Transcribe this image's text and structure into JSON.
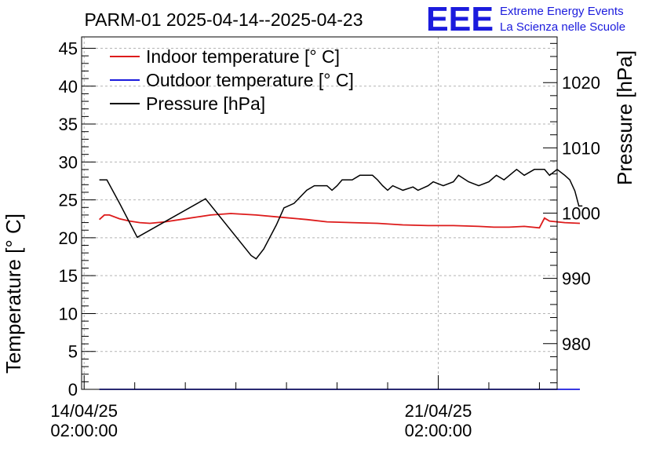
{
  "chart_data": {
    "type": "line",
    "title": "PARM-01 2025-04-14--2025-04-23",
    "ylabel": "Temperature [° C]",
    "y2label": "Pressure [hPa]",
    "ylim": [
      0,
      46.5
    ],
    "y2lim": [
      973,
      1027
    ],
    "xlim_days": [
      -0.05,
      9.35
    ],
    "grid": true,
    "legend_position": "top-left",
    "yticks": [
      0,
      5,
      10,
      15,
      20,
      25,
      30,
      35,
      40,
      45
    ],
    "y2ticks": [
      980,
      990,
      1000,
      1010,
      1020
    ],
    "xticks": [
      {
        "day": 0,
        "label1": "14/04/25",
        "label2": "02:00:00"
      },
      {
        "day": 7,
        "label1": "21/04/25",
        "label2": "02:00:00"
      }
    ],
    "series": [
      {
        "name": "Indoor temperature [° C]",
        "color": "#dd1b1b",
        "axis": "left",
        "points": [
          [
            0.3,
            22.4
          ],
          [
            0.4,
            23.0
          ],
          [
            0.5,
            23.0
          ],
          [
            0.7,
            22.5
          ],
          [
            0.9,
            22.2
          ],
          [
            1.1,
            22.0
          ],
          [
            1.3,
            21.9
          ],
          [
            1.6,
            22.1
          ],
          [
            2.0,
            22.5
          ],
          [
            2.5,
            23.0
          ],
          [
            2.9,
            23.2
          ],
          [
            3.4,
            23.0
          ],
          [
            3.9,
            22.7
          ],
          [
            4.4,
            22.4
          ],
          [
            4.8,
            22.1
          ],
          [
            5.3,
            22.0
          ],
          [
            5.8,
            21.9
          ],
          [
            6.3,
            21.7
          ],
          [
            6.8,
            21.6
          ],
          [
            7.3,
            21.6
          ],
          [
            7.8,
            21.5
          ],
          [
            8.1,
            21.4
          ],
          [
            8.4,
            21.4
          ],
          [
            8.7,
            21.5
          ],
          [
            9.0,
            21.3
          ],
          [
            9.1,
            22.6
          ],
          [
            9.2,
            22.2
          ],
          [
            9.5,
            22.0
          ],
          [
            9.8,
            21.9
          ]
        ]
      },
      {
        "name": "Outdoor temperature [° C]",
        "color": "#1b1bdd",
        "axis": "left",
        "points": [
          [
            0.3,
            0.0
          ],
          [
            9.8,
            0.0
          ]
        ]
      },
      {
        "name": "Pressure [hPa]",
        "color": "#000000",
        "axis": "right",
        "points": [
          [
            0.3,
            1005.1
          ],
          [
            0.45,
            1005.1
          ],
          [
            0.7,
            1001.5
          ],
          [
            1.05,
            996.3
          ],
          [
            2.4,
            1002.2
          ],
          [
            3.3,
            993.5
          ],
          [
            3.4,
            993.0
          ],
          [
            3.55,
            994.5
          ],
          [
            3.8,
            998.2
          ],
          [
            3.95,
            1000.8
          ],
          [
            4.15,
            1001.5
          ],
          [
            4.4,
            1003.5
          ],
          [
            4.55,
            1004.2
          ],
          [
            4.8,
            1004.2
          ],
          [
            4.9,
            1003.5
          ],
          [
            5.0,
            1004.2
          ],
          [
            5.1,
            1005.1
          ],
          [
            5.3,
            1005.1
          ],
          [
            5.45,
            1005.8
          ],
          [
            5.7,
            1005.8
          ],
          [
            5.8,
            1005.1
          ],
          [
            5.9,
            1004.2
          ],
          [
            6.0,
            1003.5
          ],
          [
            6.1,
            1004.2
          ],
          [
            6.3,
            1003.5
          ],
          [
            6.5,
            1004.0
          ],
          [
            6.6,
            1003.5
          ],
          [
            6.8,
            1004.2
          ],
          [
            6.9,
            1004.8
          ],
          [
            7.1,
            1004.2
          ],
          [
            7.3,
            1004.8
          ],
          [
            7.4,
            1005.8
          ],
          [
            7.6,
            1004.8
          ],
          [
            7.8,
            1004.2
          ],
          [
            8.0,
            1004.8
          ],
          [
            8.15,
            1005.8
          ],
          [
            8.3,
            1005.1
          ],
          [
            8.55,
            1006.7
          ],
          [
            8.7,
            1005.8
          ],
          [
            8.9,
            1006.7
          ],
          [
            9.1,
            1006.7
          ],
          [
            9.2,
            1005.8
          ],
          [
            9.35,
            1006.7
          ],
          [
            9.5,
            1005.8
          ],
          [
            9.6,
            1005.1
          ],
          [
            9.7,
            1003.4
          ],
          [
            9.78,
            1001.1
          ],
          [
            9.85,
            1001.1
          ]
        ]
      }
    ]
  },
  "logo": {
    "mark": "EEE",
    "line1": "Extreme Energy Events",
    "line2": "La Scienza nelle Scuole"
  }
}
